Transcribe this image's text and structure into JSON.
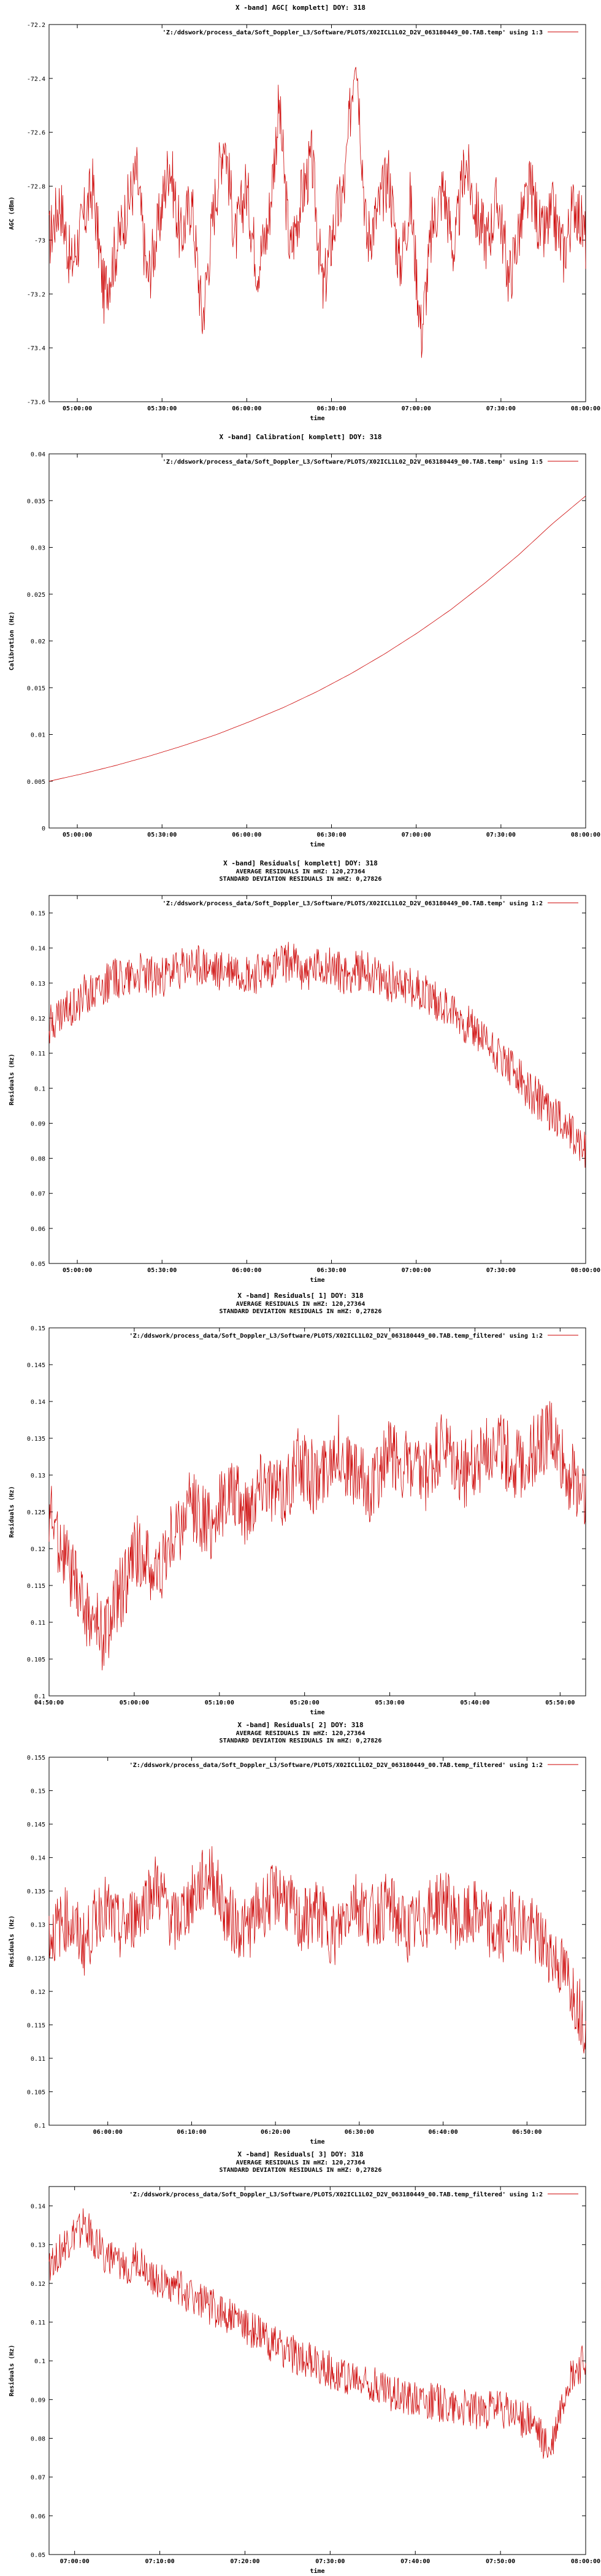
{
  "colors": {
    "series": "#cc0000",
    "axis": "#000000"
  },
  "chart_data": [
    {
      "type": "line",
      "title": "X -band] AGC[ komplett] DOY: 318",
      "subtitles": [],
      "xlabel": "time",
      "ylabel": "AGC (dBm)",
      "ylim": [
        -73.6,
        -72.2
      ],
      "yticks": [
        "-72.2",
        "-72.4",
        "-72.6",
        "-72.8",
        "-73",
        "-73.2",
        "-73.4",
        "-73.6"
      ],
      "xticks": [
        "05:00:00",
        "05:30:00",
        "06:00:00",
        "06:30:00",
        "07:00:00",
        "07:30:00",
        "08:00:00"
      ],
      "legend": "'Z:/ddswork/process_data/Soft_Doppler_L3/Software/PLOTS/X02ICL1L02_D2V_063180449_00.TAB.temp' using 1:3",
      "legend_position": "top-right",
      "series": [
        {
          "name": "'Z:/ddswork/process_data/Soft_Doppler_L3/Software/PLOTS/X02ICL1L02_D2V_063180449_00.TAB.temp' using 1:3",
          "x_start": "04:50:00",
          "x_end": "08:00:00",
          "baseline": -72.95,
          "spread": 0.32,
          "values": [
            -73.0,
            -72.85,
            -73.1,
            -72.95,
            -72.8,
            -73.2,
            -73.05,
            -72.9,
            -72.75,
            -73.15,
            -72.95,
            -72.7,
            -73.0,
            -72.85,
            -73.3,
            -72.9,
            -72.6,
            -73.0,
            -72.8,
            -73.1,
            -72.95,
            -72.5,
            -73.05,
            -72.85,
            -72.7,
            -73.2,
            -72.95,
            -72.8,
            -72.25,
            -73.0,
            -72.9,
            -72.75,
            -73.1,
            -72.85,
            -73.35,
            -72.95,
            -72.8,
            -73.05,
            -72.7,
            -72.9,
            -73.0,
            -72.85,
            -73.15,
            -72.95,
            -72.8,
            -73.0,
            -72.9,
            -73.05,
            -72.85,
            -73.0
          ]
        }
      ]
    },
    {
      "type": "line",
      "title": "X -band] Calibration[ komplett] DOY: 318",
      "subtitles": [],
      "xlabel": "time",
      "ylabel": "Calibration (Hz)",
      "ylim": [
        0,
        0.04
      ],
      "yticks": [
        "0.04",
        "0.035",
        "0.03",
        "0.025",
        "0.02",
        "0.015",
        "0.01",
        "0.005",
        "0"
      ],
      "xticks": [
        "05:00:00",
        "05:30:00",
        "06:00:00",
        "06:30:00",
        "07:00:00",
        "07:30:00",
        "08:00:00"
      ],
      "legend": "'Z:/ddswork/process_data/Soft_Doppler_L3/Software/PLOTS/X02ICL1L02_D2V_063180449_00.TAB.temp' using 1:5",
      "legend_position": "top-right",
      "series": [
        {
          "name": "'Z:/ddswork/process_data/Soft_Doppler_L3/Software/PLOTS/X02ICL1L02_D2V_063180449_00.TAB.temp' using 1:5",
          "x_start": "04:50:00",
          "x_end": "08:00:00",
          "values": [
            0.005,
            0.0058,
            0.0067,
            0.0077,
            0.0088,
            0.01,
            0.0114,
            0.0129,
            0.0146,
            0.0165,
            0.0186,
            0.0209,
            0.0234,
            0.0262,
            0.0292,
            0.0325,
            0.0355
          ]
        }
      ]
    },
    {
      "type": "line",
      "title": "X -band] Residuals[ komplett] DOY: 318",
      "subtitles": [
        "AVERAGE RESIDUALS IN mHZ: 120,27364",
        "STANDARD DEVIATION RESIDUALS IN mHZ: 0,27826"
      ],
      "xlabel": "time",
      "ylabel": "Residuals (Hz)",
      "ylim": [
        0.05,
        0.155
      ],
      "yticks": [
        "0.15",
        "0.14",
        "0.13",
        "0.12",
        "0.11",
        "0.1",
        "0.09",
        "0.08",
        "0.07",
        "0.06",
        "0.05"
      ],
      "xticks": [
        "05:00:00",
        "05:30:00",
        "06:00:00",
        "06:30:00",
        "07:00:00",
        "07:30:00",
        "08:00:00"
      ],
      "legend": "'Z:/ddswork/process_data/Soft_Doppler_L3/Software/PLOTS/X02ICL1L02_D2V_063180449_00.TAB.temp' using 1:2",
      "legend_position": "top-right",
      "series": [
        {
          "name": "'Z:/ddswork/process_data/Soft_Doppler_L3/Software/PLOTS/X02ICL1L02_D2V_063180449_00.TAB.temp' using 1:2",
          "x_start": "04:50:00",
          "x_end": "08:00:00",
          "values": [
            0.118,
            0.122,
            0.127,
            0.13,
            0.132,
            0.133,
            0.131,
            0.134,
            0.135,
            0.133,
            0.134,
            0.132,
            0.134,
            0.136,
            0.133,
            0.135,
            0.132,
            0.134,
            0.13,
            0.131,
            0.128,
            0.125,
            0.121,
            0.116,
            0.111,
            0.105,
            0.099,
            0.094,
            0.089,
            0.083
          ]
        }
      ]
    },
    {
      "type": "line",
      "title": "X -band] Residuals[ 1] DOY: 318",
      "subtitles": [
        "AVERAGE RESIDUALS IN mHZ: 120,27364",
        "STANDARD DEVIATION RESIDUALS IN mHZ: 0,27826"
      ],
      "xlabel": "time",
      "ylabel": "Residuals (Hz)",
      "ylim": [
        0.1,
        0.15
      ],
      "yticks": [
        "0.15",
        "0.145",
        "0.14",
        "0.135",
        "0.13",
        "0.125",
        "0.12",
        "0.115",
        "0.11",
        "0.105",
        "0.1"
      ],
      "xticks": [
        "04:50:00",
        "05:00:00",
        "05:10:00",
        "05:20:00",
        "05:30:00",
        "05:40:00",
        "05:50:00"
      ],
      "legend": "'Z:/ddswork/process_data/Soft_Doppler_L3/Software/PLOTS/X02ICL1L02_D2V_063180449_00.TAB.temp_filtered' using 1:2",
      "legend_position": "top-right",
      "series": [
        {
          "name": "'Z:/ddswork/process_data/Soft_Doppler_L3/Software/PLOTS/X02ICL1L02_D2V_063180449_00.TAB.temp_filtered' using 1:2",
          "x_start": "04:50:00",
          "x_end": "05:53:00",
          "values": [
            0.125,
            0.118,
            0.112,
            0.108,
            0.114,
            0.12,
            0.116,
            0.122,
            0.126,
            0.123,
            0.128,
            0.125,
            0.13,
            0.127,
            0.132,
            0.129,
            0.134,
            0.13,
            0.128,
            0.133,
            0.131,
            0.129,
            0.134,
            0.13,
            0.132,
            0.135,
            0.131,
            0.133,
            0.136,
            0.13,
            0.128
          ]
        }
      ]
    },
    {
      "type": "line",
      "title": "X -band] Residuals[ 2] DOY: 318",
      "subtitles": [
        "AVERAGE RESIDUALS IN mHZ: 120,27364",
        "STANDARD DEVIATION RESIDUALS IN mHZ: 0,27826"
      ],
      "xlabel": "time",
      "ylabel": "Residuals (Hz)",
      "ylim": [
        0.1,
        0.155
      ],
      "yticks": [
        "0.155",
        "0.15",
        "0.145",
        "0.14",
        "0.135",
        "0.13",
        "0.125",
        "0.12",
        "0.115",
        "0.11",
        "0.105",
        "0.1"
      ],
      "xticks": [
        "06:00:00",
        "06:10:00",
        "06:20:00",
        "06:30:00",
        "06:40:00",
        "06:50:00"
      ],
      "legend": "'Z:/ddswork/process_data/Soft_Doppler_L3/Software/PLOTS/X02ICL1L02_D2V_063180449_00.TAB.temp_filtered' using 1:2",
      "legend_position": "top-right",
      "series": [
        {
          "name": "'Z:/ddswork/process_data/Soft_Doppler_L3/Software/PLOTS/X02ICL1L02_D2V_063180449_00.TAB.temp_filtered' using 1:2",
          "x_start": "05:53:00",
          "x_end": "06:57:00",
          "values": [
            0.128,
            0.131,
            0.127,
            0.133,
            0.129,
            0.132,
            0.136,
            0.13,
            0.134,
            0.138,
            0.131,
            0.129,
            0.133,
            0.135,
            0.13,
            0.132,
            0.128,
            0.134,
            0.131,
            0.133,
            0.129,
            0.131,
            0.134,
            0.13,
            0.132,
            0.128,
            0.131,
            0.129,
            0.126,
            0.122,
            0.115
          ]
        }
      ]
    },
    {
      "type": "line",
      "title": "X -band] Residuals[ 3] DOY: 318",
      "subtitles": [
        "AVERAGE RESIDUALS IN mHZ: 120,27364",
        "STANDARD DEVIATION RESIDUALS IN mHZ: 0,27826"
      ],
      "xlabel": "time",
      "ylabel": "Residuals (Hz)",
      "ylim": [
        0.05,
        0.145
      ],
      "yticks": [
        "0.14",
        "0.13",
        "0.12",
        "0.11",
        "0.1",
        "0.09",
        "0.08",
        "0.07",
        "0.06",
        "0.05"
      ],
      "xticks": [
        "07:00:00",
        "07:10:00",
        "07:20:00",
        "07:30:00",
        "07:40:00",
        "07:50:00",
        "08:00:00"
      ],
      "legend": "'Z:/ddswork/process_data/Soft_Doppler_L3/Software/PLOTS/X02ICL1L02_D2V_063180449_00.TAB.temp_filtered' using 1:2",
      "legend_position": "top-right",
      "series": [
        {
          "name": "'Z:/ddswork/process_data/Soft_Doppler_L3/Software/PLOTS/X02ICL1L02_D2V_063180449_00.TAB.temp_filtered' using 1:2",
          "x_start": "06:57:00",
          "x_end": "08:00:00",
          "values": [
            0.125,
            0.13,
            0.135,
            0.128,
            0.124,
            0.126,
            0.121,
            0.119,
            0.117,
            0.114,
            0.112,
            0.109,
            0.106,
            0.103,
            0.101,
            0.099,
            0.097,
            0.095,
            0.094,
            0.092,
            0.091,
            0.09,
            0.089,
            0.088,
            0.087,
            0.088,
            0.086,
            0.084,
            0.076,
            0.095,
            0.1
          ]
        }
      ]
    }
  ]
}
